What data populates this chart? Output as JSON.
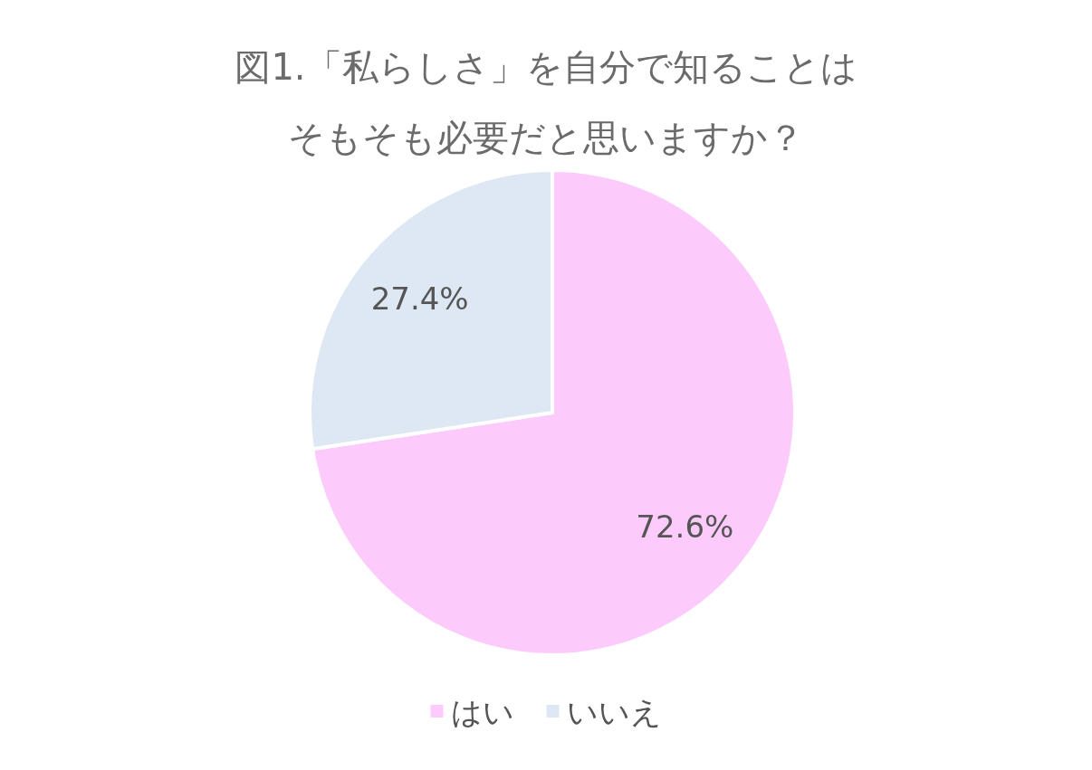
{
  "chart_data": {
    "type": "pie",
    "title": "図1.「私らしさ」を自分で知ることはそもそも必要だと思いますか？",
    "categories": [
      "はい",
      "いいえ"
    ],
    "values": [
      72.6,
      27.4
    ],
    "colors": [
      "#fccbfc",
      "#dde8f4"
    ],
    "value_labels": [
      "72.6%",
      "27.4%"
    ],
    "legend": "bottom"
  }
}
